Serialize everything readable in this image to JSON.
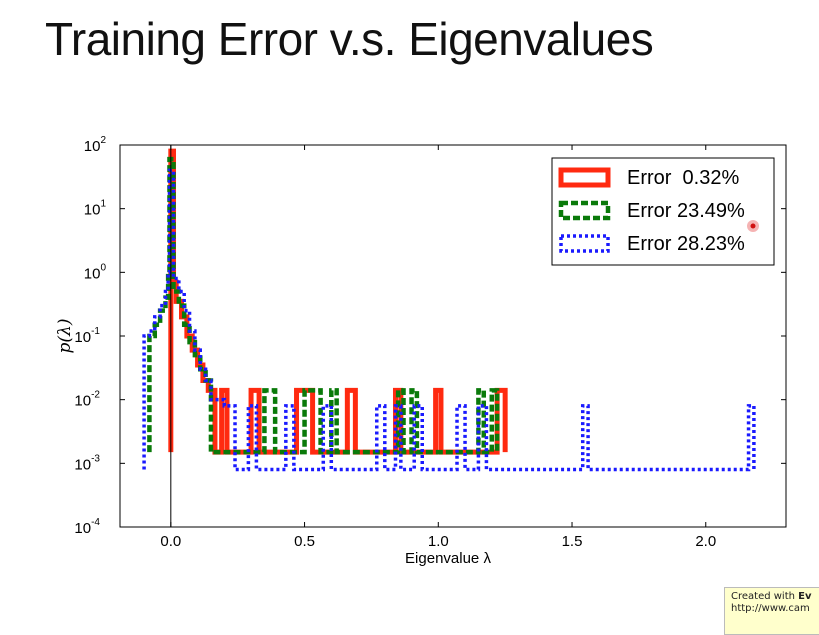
{
  "slide": {
    "title": "Training Error v.s. Eigenvalues"
  },
  "badge": {
    "line1_prefix": "Created with",
    "line1_bold": "Ev",
    "line2": "http://www.cam"
  },
  "chart_data": {
    "type": "line",
    "drawstyle": "steps-post",
    "title": "",
    "xlabel": "Eigenvalue λ",
    "ylabel": "p(λ)",
    "xlim": [
      -0.19,
      2.3
    ],
    "ylim": [
      0.0001,
      100
    ],
    "yscale": "log",
    "xticks": [
      0.0,
      0.5,
      1.0,
      1.5,
      2.0
    ],
    "xtick_labels": [
      "0.0",
      "0.5",
      "1.0",
      "1.5",
      "2.0"
    ],
    "yticks": [
      -4,
      -3,
      -2,
      -1,
      0,
      1,
      2
    ],
    "ytick_labels": [
      "10",
      "10",
      "10",
      "10",
      "10",
      "10",
      "10"
    ],
    "ytick_exponents": [
      "-4",
      "-3",
      "-2",
      "-1",
      "0",
      "1",
      "2"
    ],
    "grid": false,
    "legend": "top-right",
    "vline_x": 0.0,
    "series": [
      {
        "name": "Error  0.32%",
        "color": "#ff2a10",
        "style": "solid",
        "end_x": 1.25,
        "steps": [
          [
            0,
            80
          ],
          [
            0.01,
            0.7
          ],
          [
            0.02,
            0.35
          ],
          [
            0.04,
            0.2
          ],
          [
            0.06,
            0.1
          ],
          [
            0.08,
            0.06
          ],
          [
            0.1,
            0.035
          ],
          [
            0.12,
            0.02
          ],
          [
            0.14,
            0.014
          ],
          [
            0.165,
            0.0015
          ],
          [
            0.19,
            0.014
          ],
          [
            0.21,
            0.0015
          ],
          [
            0.3,
            0.014
          ],
          [
            0.33,
            0.0015
          ],
          [
            0.47,
            0.014
          ],
          [
            0.53,
            0.0015
          ],
          [
            0.66,
            0.014
          ],
          [
            0.69,
            0.0015
          ],
          [
            0.84,
            0.014
          ],
          [
            0.86,
            0.0015
          ],
          [
            0.99,
            0.014
          ],
          [
            1.01,
            0.0015
          ],
          [
            1.22,
            0.014
          ]
        ]
      },
      {
        "name": "Error 23.49%",
        "color": "#0a7a0a",
        "style": "dashed",
        "end_x": 1.22,
        "steps": [
          [
            -0.08,
            0.1
          ],
          [
            -0.06,
            0.15
          ],
          [
            -0.04,
            0.25
          ],
          [
            -0.02,
            0.4
          ],
          [
            -0.01,
            1
          ],
          [
            -0.005,
            60
          ],
          [
            0.01,
            0.5
          ],
          [
            0.03,
            0.3
          ],
          [
            0.05,
            0.15
          ],
          [
            0.07,
            0.08
          ],
          [
            0.09,
            0.05
          ],
          [
            0.11,
            0.03
          ],
          [
            0.13,
            0.02
          ],
          [
            0.15,
            0.0015
          ],
          [
            0.35,
            0.014
          ],
          [
            0.39,
            0.0015
          ],
          [
            0.5,
            0.014
          ],
          [
            0.56,
            0.0015
          ],
          [
            0.6,
            0.014
          ],
          [
            0.62,
            0.0015
          ],
          [
            0.85,
            0.014
          ],
          [
            0.87,
            0.0015
          ],
          [
            0.9,
            0.014
          ],
          [
            0.92,
            0.0015
          ],
          [
            1.15,
            0.014
          ],
          [
            1.17,
            0.0015
          ],
          [
            1.2,
            0.014
          ]
        ]
      },
      {
        "name": "Error 28.23%",
        "color": "#1a1aff",
        "style": "dotted",
        "end_x": 2.18,
        "steps": [
          [
            -0.1,
            0.1
          ],
          [
            -0.08,
            0.12
          ],
          [
            -0.06,
            0.2
          ],
          [
            -0.04,
            0.3
          ],
          [
            -0.02,
            0.5
          ],
          [
            -0.01,
            1
          ],
          [
            -0.005,
            40
          ],
          [
            0.01,
            0.8
          ],
          [
            0.03,
            0.5
          ],
          [
            0.05,
            0.25
          ],
          [
            0.07,
            0.12
          ],
          [
            0.09,
            0.06
          ],
          [
            0.11,
            0.03
          ],
          [
            0.13,
            0.02
          ],
          [
            0.15,
            0.01
          ],
          [
            0.2,
            0.008
          ],
          [
            0.24,
            0.0008
          ],
          [
            0.29,
            0.008
          ],
          [
            0.32,
            0.0008
          ],
          [
            0.43,
            0.008
          ],
          [
            0.46,
            0.0008
          ],
          [
            0.57,
            0.008
          ],
          [
            0.6,
            0.0008
          ],
          [
            0.77,
            0.008
          ],
          [
            0.8,
            0.0008
          ],
          [
            0.84,
            0.008
          ],
          [
            0.86,
            0.0008
          ],
          [
            0.91,
            0.008
          ],
          [
            0.94,
            0.0008
          ],
          [
            1.07,
            0.008
          ],
          [
            1.1,
            0.0008
          ],
          [
            1.15,
            0.008
          ],
          [
            1.18,
            0.0008
          ],
          [
            1.54,
            0.008
          ],
          [
            1.56,
            0.0008
          ],
          [
            2.16,
            0.008
          ]
        ]
      }
    ]
  }
}
